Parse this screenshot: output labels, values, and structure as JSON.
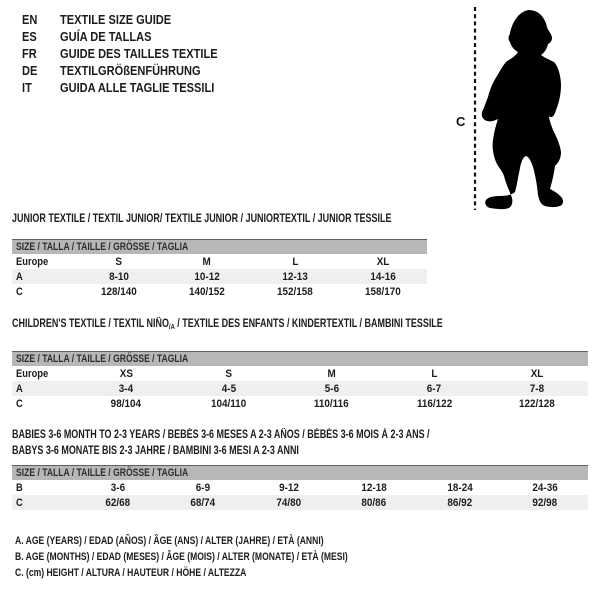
{
  "colors": {
    "background": "#ffffff",
    "text": "#1c1c1c",
    "size_bar_bg": "#b7b7b7",
    "size_bar_border": "#5f5f5f",
    "shaded_row": "#efefef",
    "silhouette": "#000000"
  },
  "header": {
    "languages": [
      {
        "code": "EN",
        "label": "TEXTILE SIZE GUIDE"
      },
      {
        "code": "ES",
        "label": "GUÍA DE TALLAS"
      },
      {
        "code": "FR",
        "label": "GUIDE DES TAILLES TEXTILE"
      },
      {
        "code": "DE",
        "label": "TEXTILGRÖßENFÜHRUNG"
      },
      {
        "code": "IT",
        "label": "GUIDA ALLE TAGLIE TESSILI"
      }
    ]
  },
  "figure": {
    "height_label": "C",
    "icon": "baby-silhouette-icon"
  },
  "sections": [
    {
      "title_lines": [
        [
          {
            "t": "JUNIOR TEXTILE / TEXTIL JUNIOR/ TEXTILE JUNIOR / JUNIORTEXTIL / JUNIOR TESSILE"
          }
        ]
      ],
      "size_header": "SIZE / TALLA / TAILLE / GRÖSSE / TAGLIA",
      "region_label": "Europe",
      "sizes": [
        "S",
        "M",
        "L",
        "XL"
      ],
      "rows": [
        {
          "label": "A",
          "values": [
            "8-10",
            "10-12",
            "12-13",
            "14-16"
          ],
          "shaded": true
        },
        {
          "label": "C",
          "values": [
            "128/140",
            "140/152",
            "152/158",
            "158/170"
          ],
          "shaded": false
        }
      ]
    },
    {
      "title_lines": [
        [
          {
            "t": "CHILDREN'S TEXTILE / TEXTIL NIÑO"
          },
          {
            "t": "/A",
            "sub": true
          },
          {
            "t": " / TEXTILE DES ENFANTS / KINDERTEXTIL / BAMBINI TESSILE"
          }
        ]
      ],
      "size_header": "SIZE / TALLA / TAILLE / GRÖSSE / TAGLIA",
      "region_label": "Europe",
      "sizes": [
        "XS",
        "S",
        "M",
        "L",
        "XL"
      ],
      "rows": [
        {
          "label": "A",
          "values": [
            "3-4",
            "4-5",
            "5-6",
            "6-7",
            "7-8"
          ],
          "shaded": true
        },
        {
          "label": "C",
          "values": [
            "98/104",
            "104/110",
            "110/116",
            "116/122",
            "122/128"
          ],
          "shaded": false
        }
      ]
    },
    {
      "title_lines": [
        [
          {
            "t": "BABIES 3-6 MONTH TO 2-3 YEARS / BEBÉS 3-6 MESES A 2-3 AÑOS / BÉBÉS 3-6 MOIS À 2-3 ANS /"
          }
        ],
        [
          {
            "t": "BABYS 3-6 MONATE BIS 2-3 JAHRE / BAMBINI 3-6 MESI A 2-3 ANNI"
          }
        ]
      ],
      "size_header": "SIZE / TALLA / TAILLE / GRÖSSE / TAGLIA",
      "region_label": null,
      "sizes": null,
      "rows": [
        {
          "label": "B",
          "values": [
            "3-6",
            "6-9",
            "9-12",
            "12-18",
            "18-24",
            "24-36"
          ],
          "shaded": false
        },
        {
          "label": "C",
          "values": [
            "62/68",
            "68/74",
            "74/80",
            "80/86",
            "86/92",
            "92/98"
          ],
          "shaded": true
        }
      ]
    }
  ],
  "notes": [
    "A. AGE (YEARS) / EDAD (AÑOS) / ÂGE (ANS) / ALTER (JAHRE) / ETÀ (ANNI)",
    "B. AGE (MONTHS) / EDAD (MESES) / ÂGE (MOIS) / ALTER (MONATE) / ETÀ (MESI)",
    "C. (cm) HEIGHT / ALTURA / HAUTEUR / HÖHE / ALTEZZA"
  ]
}
